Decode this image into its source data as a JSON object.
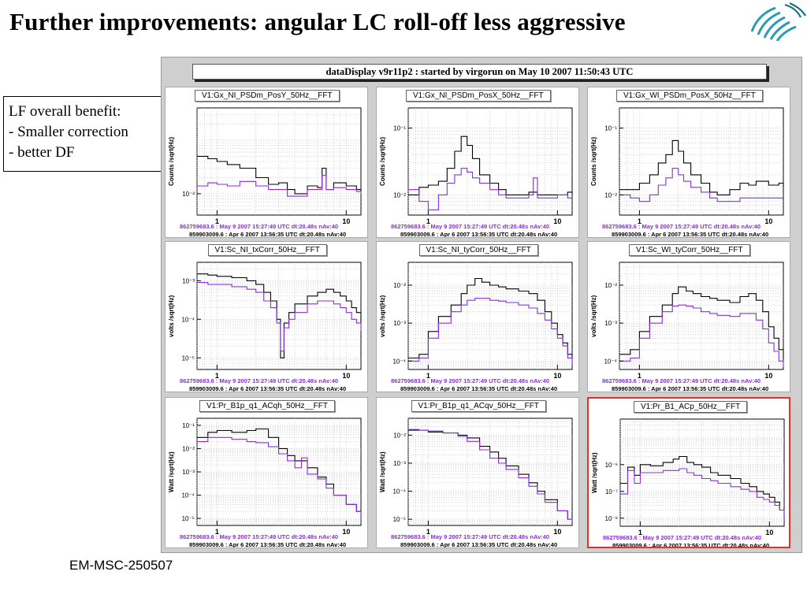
{
  "slide": {
    "title": "Further improvements: angular LC roll-off less aggressive",
    "notes": [
      "LF overall benefit:",
      "- Smaller correction",
      "- better DF"
    ],
    "footer": "EM-MSC-250507"
  },
  "display": {
    "banner": "dataDisplay v9r11p2 : started by virgorun on  May 10 2007 11:50:43 UTC",
    "info_current": "862759683.6 : May  9 2007 15:27:49 UTC dt:20.48s nAv:40",
    "info_reference": "859903009.6 : Apr 6 2007 13:56:35 UTC dt:20.48s nAv:40",
    "x_ticks": [
      {
        "v": 1,
        "label": "1"
      },
      {
        "v": 10,
        "label": "10"
      }
    ],
    "highlight_color": "#e53030",
    "series_colors": {
      "current": "#000000",
      "reference": "#8a2be2"
    }
  },
  "chart_data": [
    {
      "type": "line",
      "title": "V1:Gx_NI_PSDm_PosY_50Hz__FFT",
      "ylabel": "Counts /sqrt(Hz)",
      "xscale": "log",
      "yscale": "log",
      "xlim": [
        0.7,
        13
      ],
      "ylim": [
        0.004,
        0.4
      ],
      "yticks": [
        {
          "v": 0.01,
          "label": "10⁻²"
        }
      ],
      "series": [
        {
          "x": [
            0.7,
            0.85,
            1,
            1.2,
            1.5,
            2,
            2.5,
            3,
            3.5,
            4,
            5,
            6,
            6.5,
            7,
            8,
            10,
            12,
            13
          ],
          "y": [
            0.05,
            0.045,
            0.04,
            0.035,
            0.03,
            0.02,
            0.015,
            0.016,
            0.012,
            0.01,
            0.014,
            0.013,
            0.03,
            0.012,
            0.016,
            0.014,
            0.012,
            0.011
          ]
        },
        {
          "x": [
            0.7,
            0.85,
            1,
            1.2,
            1.5,
            2,
            2.5,
            3,
            3.5,
            4,
            5,
            6,
            6.5,
            7,
            8,
            10,
            12,
            13
          ],
          "y": [
            0.014,
            0.016,
            0.015,
            0.014,
            0.017,
            0.014,
            0.012,
            0.012,
            0.009,
            0.009,
            0.012,
            0.012,
            0.022,
            0.012,
            0.013,
            0.012,
            0.011,
            0.01
          ]
        }
      ]
    },
    {
      "type": "line",
      "title": "V1:Gx_NI_PSDm_PosX_50Hz__FFT",
      "ylabel": "Counts /sqrt(Hz)",
      "xscale": "log",
      "yscale": "log",
      "xlim": [
        0.7,
        13
      ],
      "ylim": [
        0.005,
        0.2
      ],
      "yticks": [
        {
          "v": 0.1,
          "label": "10⁻¹"
        },
        {
          "v": 0.01,
          "label": "10⁻²"
        }
      ],
      "series": [
        {
          "x": [
            0.7,
            0.85,
            1,
            1.2,
            1.4,
            1.6,
            1.8,
            2,
            2.2,
            2.5,
            3,
            3.5,
            4,
            5,
            6,
            7,
            8,
            10,
            12,
            13
          ],
          "y": [
            0.01,
            0.013,
            0.014,
            0.016,
            0.025,
            0.045,
            0.075,
            0.055,
            0.035,
            0.02,
            0.015,
            0.012,
            0.01,
            0.01,
            0.011,
            0.01,
            0.01,
            0.01,
            0.011,
            0.01
          ]
        },
        {
          "x": [
            0.7,
            0.85,
            1,
            1.2,
            1.4,
            1.6,
            1.8,
            2,
            2.2,
            2.5,
            3,
            3.5,
            4,
            5,
            6,
            6.5,
            7,
            8,
            10,
            12,
            13
          ],
          "y": [
            0.012,
            0.008,
            0.006,
            0.01,
            0.015,
            0.02,
            0.025,
            0.022,
            0.018,
            0.015,
            0.012,
            0.01,
            0.009,
            0.009,
            0.01,
            0.018,
            0.009,
            0.009,
            0.01,
            0.009,
            0.009
          ]
        }
      ]
    },
    {
      "type": "line",
      "title": "V1:Gx_WI_PSDm_PosX_50Hz__FFT",
      "ylabel": "Counts /sqrt(Hz)",
      "xscale": "log",
      "yscale": "log",
      "xlim": [
        0.7,
        13
      ],
      "ylim": [
        0.005,
        0.2
      ],
      "yticks": [
        {
          "v": 0.1,
          "label": "10⁻¹"
        },
        {
          "v": 0.01,
          "label": "10⁻²"
        }
      ],
      "series": [
        {
          "x": [
            0.7,
            0.85,
            1,
            1.2,
            1.4,
            1.6,
            1.8,
            2,
            2.2,
            2.5,
            3,
            3.5,
            4,
            5,
            6,
            7,
            8,
            10,
            12,
            13
          ],
          "y": [
            0.012,
            0.012,
            0.015,
            0.02,
            0.03,
            0.04,
            0.065,
            0.045,
            0.03,
            0.02,
            0.015,
            0.011,
            0.01,
            0.012,
            0.015,
            0.014,
            0.016,
            0.014,
            0.015,
            0.013
          ]
        },
        {
          "x": [
            0.7,
            0.85,
            1,
            1.2,
            1.4,
            1.6,
            1.8,
            2,
            2.2,
            2.5,
            3,
            3.5,
            4,
            5,
            6,
            7,
            8,
            10,
            12,
            13
          ],
          "y": [
            0.01,
            0.009,
            0.008,
            0.01,
            0.014,
            0.018,
            0.025,
            0.02,
            0.016,
            0.013,
            0.011,
            0.009,
            0.008,
            0.008,
            0.009,
            0.009,
            0.009,
            0.009,
            0.009,
            0.009
          ]
        }
      ]
    },
    {
      "type": "line",
      "title": "V1:Sc_NI_txCorr_50Hz__FFT",
      "ylabel": "volts /sqrt(Hz)",
      "xscale": "log",
      "yscale": "log",
      "xlim": [
        0.7,
        13
      ],
      "ylim": [
        5e-06,
        0.003
      ],
      "yticks": [
        {
          "v": 0.001,
          "label": "10⁻³"
        },
        {
          "v": 0.0001,
          "label": "10⁻⁴"
        },
        {
          "v": 1e-05,
          "label": "10⁻⁵"
        }
      ],
      "series": [
        {
          "x": [
            0.7,
            0.85,
            1,
            1.3,
            1.7,
            2,
            2.3,
            2.6,
            2.9,
            3.1,
            3.3,
            3.6,
            4,
            5,
            6,
            7,
            8,
            9,
            10,
            11,
            12,
            13
          ],
          "y": [
            0.0015,
            0.0014,
            0.0013,
            0.0012,
            0.001,
            0.0008,
            0.0005,
            0.0003,
            0.0001,
            1e-05,
            8e-05,
            0.00015,
            0.00025,
            0.0004,
            0.0005,
            0.0006,
            0.0005,
            0.0004,
            0.0003,
            0.0002,
            0.00015,
            8e-05
          ]
        },
        {
          "x": [
            0.7,
            0.85,
            1,
            1.3,
            1.7,
            2,
            2.3,
            2.6,
            2.9,
            3.1,
            3.3,
            3.6,
            4,
            5,
            6,
            7,
            8,
            9,
            10,
            11,
            12,
            13
          ],
          "y": [
            0.0009,
            0.0008,
            0.0008,
            0.0007,
            0.0006,
            0.0005,
            0.0003,
            0.0002,
            8e-05,
            1.5e-05,
            6e-05,
            0.0001,
            0.00015,
            0.00025,
            0.0003,
            0.0003,
            0.00025,
            0.0002,
            0.00015,
            0.0001,
            8e-05,
            5e-05
          ]
        }
      ]
    },
    {
      "type": "line",
      "title": "V1:Sc_NI_tyCorr_50Hz__FFT",
      "ylabel": "volts /sqrt(Hz)",
      "xscale": "log",
      "yscale": "log",
      "xlim": [
        0.7,
        13
      ],
      "ylim": [
        6e-05,
        0.04
      ],
      "yticks": [
        {
          "v": 0.01,
          "label": "10⁻²"
        },
        {
          "v": 0.001,
          "label": "10⁻³"
        },
        {
          "v": 0.0001,
          "label": "10⁻⁴"
        }
      ],
      "series": [
        {
          "x": [
            0.7,
            0.85,
            1,
            1.2,
            1.5,
            1.8,
            2,
            2.3,
            2.6,
            3,
            3.5,
            4,
            5,
            6,
            7,
            8,
            9,
            10,
            11,
            12,
            13
          ],
          "y": [
            0.00012,
            0.00015,
            0.0006,
            0.0015,
            0.003,
            0.006,
            0.01,
            0.015,
            0.012,
            0.01,
            0.009,
            0.008,
            0.007,
            0.006,
            0.004,
            0.002,
            0.001,
            0.0005,
            0.0003,
            0.00015,
            0.0001
          ]
        },
        {
          "x": [
            0.7,
            0.85,
            1,
            1.2,
            1.5,
            1.8,
            2,
            2.3,
            2.6,
            3,
            3.5,
            4,
            5,
            6,
            7,
            8,
            9,
            10,
            11,
            12,
            13
          ],
          "y": [
            0.0001,
            0.00012,
            0.0004,
            0.001,
            0.002,
            0.003,
            0.004,
            0.0045,
            0.0045,
            0.004,
            0.0038,
            0.0035,
            0.003,
            0.0025,
            0.0018,
            0.0012,
            0.0007,
            0.0004,
            0.00025,
            0.00012,
            8e-05
          ]
        }
      ]
    },
    {
      "type": "line",
      "title": "V1:Sc_WI_tyCorr_50Hz__FFT",
      "ylabel": "volts /sqrt(Hz)",
      "xscale": "log",
      "yscale": "log",
      "xlim": [
        0.7,
        13
      ],
      "ylim": [
        6e-05,
        0.04
      ],
      "yticks": [
        {
          "v": 0.01,
          "label": "10⁻²"
        },
        {
          "v": 0.001,
          "label": "10⁻³"
        },
        {
          "v": 0.0001,
          "label": "10⁻⁴"
        }
      ],
      "series": [
        {
          "x": [
            0.7,
            0.85,
            1,
            1.2,
            1.5,
            1.8,
            2,
            2.3,
            2.6,
            3,
            3.5,
            4,
            5,
            6,
            7,
            8,
            9,
            10,
            11,
            12,
            13
          ],
          "y": [
            0.00015,
            0.0002,
            0.0006,
            0.0015,
            0.003,
            0.006,
            0.009,
            0.007,
            0.006,
            0.005,
            0.0045,
            0.004,
            0.0035,
            0.005,
            0.006,
            0.004,
            0.002,
            0.0008,
            0.0004,
            0.0002,
            0.00012
          ]
        },
        {
          "x": [
            0.7,
            0.85,
            1,
            1.2,
            1.5,
            1.8,
            2,
            2.3,
            2.6,
            3,
            3.5,
            4,
            5,
            6,
            7,
            8,
            9,
            10,
            11,
            12,
            13
          ],
          "y": [
            0.0001,
            0.00012,
            0.0004,
            0.001,
            0.002,
            0.0028,
            0.003,
            0.0028,
            0.0025,
            0.002,
            0.0018,
            0.0016,
            0.0015,
            0.0018,
            0.0018,
            0.0012,
            0.0007,
            0.0003,
            0.00018,
            0.0001,
            7e-05
          ]
        }
      ]
    },
    {
      "type": "line",
      "title": "V1:Pr_B1p_q1_ACqh_50Hz__FFT",
      "ylabel": "Watt /sqrt(Hz)",
      "xscale": "log",
      "yscale": "log",
      "xlim": [
        0.7,
        13
      ],
      "ylim": [
        5e-06,
        0.2
      ],
      "yticks": [
        {
          "v": 0.1,
          "label": "10⁻¹"
        },
        {
          "v": 0.01,
          "label": "10⁻²"
        },
        {
          "v": 0.001,
          "label": "10⁻³"
        },
        {
          "v": 0.0001,
          "label": "10⁻⁴"
        },
        {
          "v": 1e-05,
          "label": "10⁻⁵"
        }
      ],
      "series": [
        {
          "x": [
            0.7,
            0.85,
            1,
            1.3,
            1.7,
            2,
            2.5,
            3,
            3.5,
            4,
            5,
            6,
            7,
            8,
            10,
            12,
            13
          ],
          "y": [
            0.03,
            0.05,
            0.06,
            0.05,
            0.06,
            0.07,
            0.03,
            0.01,
            0.005,
            0.003,
            0.0015,
            0.0006,
            0.0003,
            0.0001,
            4e-05,
            2e-05,
            1e-05
          ]
        },
        {
          "x": [
            0.7,
            0.85,
            1,
            1.3,
            1.7,
            2,
            2.5,
            3,
            3.5,
            4,
            4.5,
            5,
            6,
            7,
            8,
            10,
            12,
            13
          ],
          "y": [
            0.02,
            0.03,
            0.03,
            0.025,
            0.02,
            0.018,
            0.012,
            0.006,
            0.003,
            0.0015,
            0.004,
            0.0008,
            0.0005,
            0.0002,
            0.0001,
            4e-05,
            2e-05,
            1e-05
          ]
        }
      ]
    },
    {
      "type": "line",
      "title": "V1:Pr_B1p_q1_ACqv_50Hz__FFT",
      "ylabel": "Watt /sqrt(Hz)",
      "xscale": "log",
      "yscale": "log",
      "xlim": [
        0.7,
        13
      ],
      "ylim": [
        6e-06,
        0.04
      ],
      "yticks": [
        {
          "v": 0.01,
          "label": "10⁻²"
        },
        {
          "v": 0.001,
          "label": "10⁻³"
        },
        {
          "v": 0.0001,
          "label": "10⁻⁴"
        },
        {
          "v": 1e-05,
          "label": "10⁻⁵"
        }
      ],
      "series": [
        {
          "x": [
            0.7,
            0.85,
            1,
            1.3,
            1.7,
            2,
            2.5,
            3,
            3.5,
            4,
            5,
            6,
            7,
            8,
            10,
            12,
            13
          ],
          "y": [
            0.015,
            0.015,
            0.013,
            0.012,
            0.01,
            0.008,
            0.004,
            0.0025,
            0.0015,
            0.0008,
            0.0004,
            0.0002,
            0.0001,
            5e-05,
            2e-05,
            1e-05,
            8e-06
          ]
        },
        {
          "x": [
            0.7,
            0.85,
            1,
            1.3,
            1.7,
            2,
            2.5,
            3,
            3.5,
            4,
            5,
            6,
            7,
            8,
            10,
            12,
            13
          ],
          "y": [
            0.016,
            0.015,
            0.014,
            0.012,
            0.009,
            0.006,
            0.003,
            0.0015,
            0.001,
            0.0006,
            0.0003,
            0.00015,
            8e-05,
            4e-05,
            2e-05,
            1e-05,
            8e-06
          ]
        }
      ]
    },
    {
      "type": "line",
      "title": "V1:Pr_B1_ACp_50Hz__FFT",
      "ylabel": "Watt /sqrt(Hz)",
      "xscale": "log",
      "yscale": "log",
      "xlim": [
        0.7,
        13
      ],
      "ylim": [
        5e-09,
        5e-05
      ],
      "yticks": [
        {
          "v": 1e-06,
          "label": "10⁻⁶"
        },
        {
          "v": 1e-07,
          "label": "10⁻⁷"
        },
        {
          "v": 1e-08,
          "label": "10⁻⁸"
        }
      ],
      "series": [
        {
          "x": [
            0.7,
            0.8,
            0.9,
            1,
            1.2,
            1.5,
            1.8,
            2,
            2.3,
            2.6,
            3,
            3.5,
            4,
            5,
            6,
            7,
            8,
            9,
            10,
            11,
            12,
            13
          ],
          "y": [
            2e-07,
            8e-07,
            4e-07,
            1e-06,
            9e-07,
            1.2e-06,
            1.6e-06,
            2e-06,
            1.2e-06,
            1e-06,
            8e-07,
            5e-07,
            4e-07,
            3e-07,
            2e-07,
            1.5e-07,
            1e-07,
            8e-08,
            6e-08,
            4e-08,
            2e-08,
            1e-08
          ]
        },
        {
          "x": [
            0.7,
            0.8,
            0.9,
            1,
            1.2,
            1.5,
            1.8,
            2,
            2.3,
            2.6,
            3,
            3.5,
            4,
            5,
            6,
            7,
            8,
            9,
            10,
            11,
            12,
            13
          ],
          "y": [
            8e-08,
            6e-07,
            2e-07,
            5e-07,
            5e-07,
            6e-07,
            6e-07,
            7e-07,
            5e-07,
            4e-07,
            3e-07,
            2.5e-07,
            2e-07,
            1.5e-07,
            1.2e-07,
            1e-07,
            6e-08,
            5e-08,
            4e-08,
            3e-08,
            2e-08,
            1e-08
          ]
        }
      ]
    }
  ]
}
